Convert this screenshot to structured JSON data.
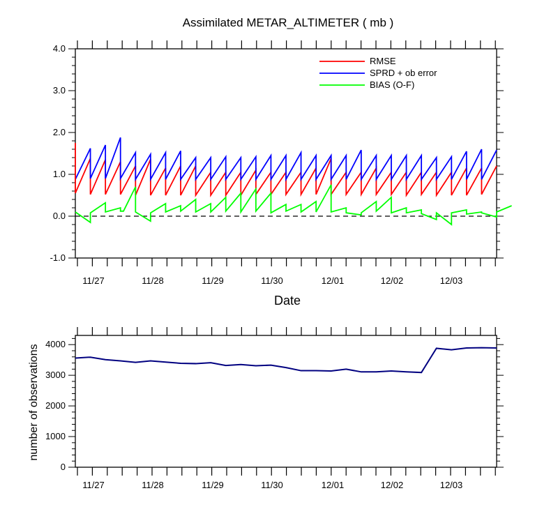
{
  "chart_data": [
    {
      "type": "line",
      "title": "Assimilated METAR_ALTIMETER ( mb )",
      "xlabel": "Date",
      "ylabel": "",
      "ylim": [
        -1.0,
        4.0
      ],
      "yticks": [
        -1.0,
        0.0,
        1.0,
        2.0,
        3.0,
        4.0
      ],
      "ytick_labels": [
        "-1.0",
        "0.0",
        "1.0",
        "2.0",
        "3.0",
        "4.0"
      ],
      "xlim": [
        0,
        28
      ],
      "x_tick_labels": [
        "11/27",
        "11/28",
        "11/29",
        "11/30",
        "12/01",
        "12/02",
        "12/03"
      ],
      "x_tick_positions": [
        1,
        5,
        9,
        13,
        17,
        21,
        25
      ],
      "reference_line": 0.0,
      "legend": [
        "RMSE",
        "SPRD + ob error",
        "BIAS (O-F)"
      ],
      "legend_position": "top-right",
      "series": [
        {
          "name": "RMSE",
          "color": "#ff0000",
          "starts": [
            0.55,
            0.52,
            0.52,
            0.52,
            0.5,
            0.5,
            0.5,
            0.5,
            0.5,
            0.5,
            0.5,
            0.5,
            0.52,
            0.52,
            0.52,
            0.52,
            0.52,
            0.52,
            0.52,
            0.52,
            0.52,
            0.52,
            0.5,
            0.52,
            0.5,
            0.5,
            0.5,
            0.52
          ],
          "ends": [
            1.38,
            1.35,
            1.3,
            1.2,
            1.36,
            1.15,
            1.2,
            1.2,
            1.05,
            1.05,
            1.05,
            1.1,
            1.05,
            1.05,
            1.05,
            1.15,
            1.38,
            1.05,
            1.05,
            1.15,
            1.05,
            1.05,
            1.05,
            1.05,
            1.05,
            1.15,
            1.15,
            1.2
          ]
        },
        {
          "name": "SPRD + ob error",
          "color": "#0000ff",
          "starts": [
            0.88,
            0.9,
            0.9,
            0.9,
            0.88,
            0.88,
            0.88,
            0.88,
            0.88,
            0.88,
            0.88,
            0.88,
            0.88,
            0.88,
            0.88,
            0.88,
            0.88,
            0.88,
            0.88,
            0.88,
            0.88,
            0.88,
            0.88,
            0.88,
            0.88,
            0.88,
            0.88,
            0.88
          ],
          "ends": [
            1.62,
            1.7,
            1.88,
            1.52,
            1.48,
            1.52,
            1.56,
            1.4,
            1.4,
            1.42,
            1.4,
            1.42,
            1.45,
            1.45,
            1.52,
            1.45,
            1.45,
            1.45,
            1.58,
            1.45,
            1.45,
            1.45,
            1.45,
            1.4,
            1.42,
            1.55,
            1.6,
            1.58
          ]
        },
        {
          "name": "BIAS (O-F)",
          "color": "#00ff00",
          "points": [
            [
              0,
              0.1
            ],
            [
              1,
              -0.15
            ],
            [
              1,
              0.08
            ],
            [
              2,
              0.32
            ],
            [
              2,
              0.1
            ],
            [
              3,
              0.2
            ],
            [
              3,
              0.12
            ],
            [
              3.2,
              0.12
            ],
            [
              4,
              0.7
            ],
            [
              4,
              0.1
            ],
            [
              5,
              -0.12
            ],
            [
              5,
              0.08
            ],
            [
              6,
              0.3
            ],
            [
              6,
              0.1
            ],
            [
              7,
              0.25
            ],
            [
              7,
              0.12
            ],
            [
              8,
              0.4
            ],
            [
              8,
              0.1
            ],
            [
              9,
              0.3
            ],
            [
              9,
              0.1
            ],
            [
              10,
              0.45
            ],
            [
              10,
              0.12
            ],
            [
              11,
              0.55
            ],
            [
              11,
              0.1
            ],
            [
              12,
              0.65
            ],
            [
              12,
              0.12
            ],
            [
              13,
              0.55
            ],
            [
              13,
              0.08
            ],
            [
              14,
              0.28
            ],
            [
              14,
              0.12
            ],
            [
              15,
              0.28
            ],
            [
              15,
              0.1
            ],
            [
              16,
              0.35
            ],
            [
              16,
              0.1
            ],
            [
              17,
              0.75
            ],
            [
              17,
              0.1
            ],
            [
              18,
              0.2
            ],
            [
              18,
              0.08
            ],
            [
              19,
              0.03
            ],
            [
              19,
              0.08
            ],
            [
              20,
              0.35
            ],
            [
              20,
              0.12
            ],
            [
              21,
              0.45
            ],
            [
              21,
              0.08
            ],
            [
              22,
              0.2
            ],
            [
              22,
              0.08
            ],
            [
              23,
              0.15
            ],
            [
              23,
              0.06
            ],
            [
              24,
              -0.08
            ],
            [
              24,
              0.08
            ],
            [
              25,
              -0.2
            ],
            [
              25,
              0.08
            ],
            [
              26,
              0.15
            ],
            [
              26,
              0.05
            ],
            [
              27,
              0.1
            ],
            [
              27,
              0.08
            ],
            [
              28,
              -0.02
            ],
            [
              28,
              0.1
            ],
            [
              29,
              0.25
            ]
          ]
        }
      ]
    },
    {
      "type": "line",
      "title": "",
      "xlabel": "",
      "ylabel": "number of observations",
      "ylim": [
        0,
        4300
      ],
      "yticks": [
        0,
        1000,
        2000,
        3000,
        4000
      ],
      "ytick_labels": [
        "0",
        "1000",
        "2000",
        "3000",
        "4000"
      ],
      "x_tick_labels": [
        "11/27",
        "11/28",
        "11/29",
        "11/30",
        "12/01",
        "12/02",
        "12/03"
      ],
      "series": [
        {
          "name": "observations",
          "color": "#000080",
          "x": [
            0,
            1,
            2,
            3,
            4,
            5,
            6,
            7,
            8,
            9,
            10,
            11,
            12,
            13,
            14,
            15,
            16,
            17,
            18,
            19,
            20,
            21,
            22,
            23,
            24,
            25,
            26,
            27,
            28
          ],
          "values": [
            3560,
            3590,
            3510,
            3470,
            3420,
            3470,
            3430,
            3390,
            3380,
            3410,
            3320,
            3350,
            3310,
            3330,
            3250,
            3150,
            3150,
            3140,
            3200,
            3110,
            3110,
            3140,
            3110,
            3090,
            3880,
            3830,
            3890,
            3900,
            3890
          ]
        }
      ]
    }
  ]
}
